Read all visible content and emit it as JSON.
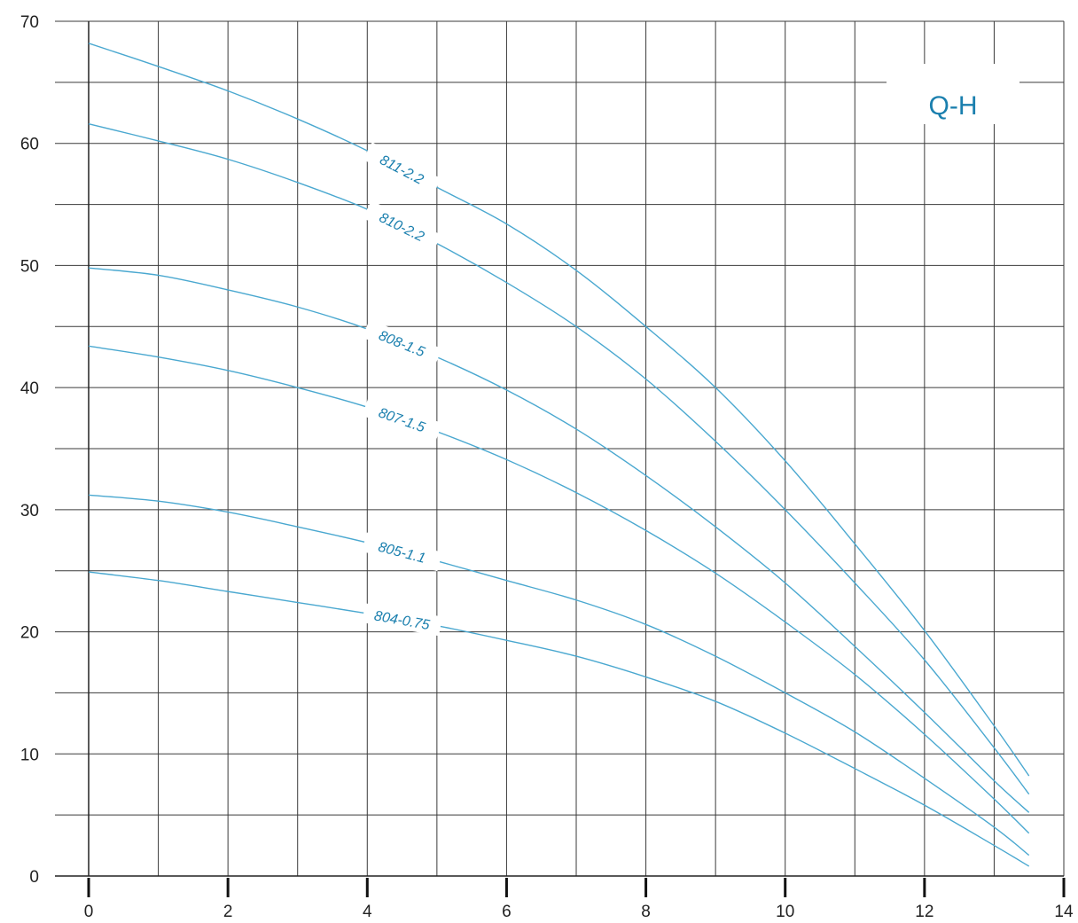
{
  "chart_data": {
    "type": "line",
    "title": "Q-H",
    "xlabel": "",
    "ylabel": "",
    "xlim": [
      0,
      14
    ],
    "ylim": [
      0,
      70
    ],
    "x_ticks": [
      "0",
      "2",
      "4",
      "6",
      "8",
      "10",
      "12",
      "14"
    ],
    "y_ticks": [
      "0",
      "10",
      "20",
      "30",
      "40",
      "50",
      "60",
      "70"
    ],
    "grid": true,
    "line_color": "#4aa8d0",
    "label_color": "#1a7fae",
    "series": [
      {
        "name": "811-2.2",
        "x": [
          0,
          1,
          2,
          3,
          4,
          5,
          6,
          7,
          8,
          9,
          10,
          11,
          12,
          13,
          13.5
        ],
        "y": [
          68.2,
          66.3,
          64.3,
          62.0,
          59.4,
          56.4,
          53.4,
          49.6,
          45.0,
          40.0,
          34.0,
          27.2,
          20.1,
          12.3,
          8.2
        ]
      },
      {
        "name": "810-2.2",
        "x": [
          0,
          1,
          2,
          3,
          4,
          5,
          6,
          7,
          8,
          9,
          10,
          11,
          12,
          13,
          13.5
        ],
        "y": [
          61.6,
          60.2,
          58.7,
          56.8,
          54.6,
          51.8,
          48.6,
          45.0,
          40.7,
          35.6,
          30.0,
          24.0,
          17.7,
          10.5,
          6.7
        ]
      },
      {
        "name": "808-1.5",
        "x": [
          0,
          1,
          2,
          3,
          4,
          5,
          6,
          7,
          8,
          9,
          10,
          11,
          12,
          13,
          13.5
        ],
        "y": [
          49.8,
          49.2,
          48.0,
          46.6,
          44.8,
          42.5,
          39.8,
          36.6,
          32.8,
          28.6,
          24.0,
          18.8,
          13.4,
          7.8,
          5.2
        ]
      },
      {
        "name": "807-1.5",
        "x": [
          0,
          1,
          2,
          3,
          4,
          5,
          6,
          7,
          8,
          9,
          10,
          11,
          12,
          13,
          13.5
        ],
        "y": [
          43.4,
          42.5,
          41.4,
          40.0,
          38.4,
          36.4,
          34.1,
          31.4,
          28.3,
          24.8,
          20.8,
          16.5,
          11.6,
          6.3,
          3.5
        ]
      },
      {
        "name": "805-1.1",
        "x": [
          0,
          1,
          2,
          3,
          4,
          5,
          6,
          7,
          8,
          9,
          10,
          11,
          12,
          13,
          13.5
        ],
        "y": [
          31.2,
          30.7,
          29.8,
          28.6,
          27.3,
          25.8,
          24.2,
          22.6,
          20.6,
          18.0,
          15.0,
          11.8,
          8.0,
          4.0,
          1.7
        ]
      },
      {
        "name": "804-0.75",
        "x": [
          0,
          1,
          2,
          3,
          4,
          5,
          6,
          7,
          8,
          9,
          10,
          11,
          12,
          13,
          13.5
        ],
        "y": [
          24.9,
          24.2,
          23.3,
          22.4,
          21.5,
          20.5,
          19.3,
          18.0,
          16.3,
          14.3,
          11.7,
          8.8,
          5.8,
          2.5,
          0.8
        ]
      }
    ]
  }
}
